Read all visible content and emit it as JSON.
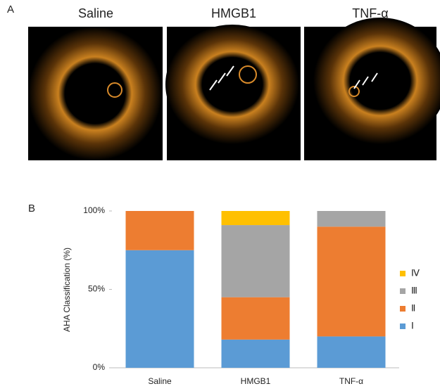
{
  "panels": {
    "a": "A",
    "b": "B"
  },
  "images": [
    "Saline",
    "HMGB1",
    "TNF-α"
  ],
  "chart_data": {
    "type": "bar",
    "stacked": true,
    "ylabel": "AHA Classification (%)",
    "categories": [
      "Saline",
      "HMGB1",
      "TNF-α"
    ],
    "series": [
      {
        "name": "Ⅰ",
        "color": "#5b9bd5",
        "values": [
          75,
          18,
          20
        ]
      },
      {
        "name": "Ⅱ",
        "color": "#ed7d31",
        "values": [
          25,
          27,
          70
        ]
      },
      {
        "name": "Ⅲ",
        "color": "#a5a5a5",
        "values": [
          0,
          46,
          10
        ]
      },
      {
        "name": "Ⅳ",
        "color": "#ffc000",
        "values": [
          0,
          9,
          0
        ]
      }
    ],
    "ylim": [
      0,
      100
    ],
    "yticks": [
      {
        "value": 0,
        "label": "0%"
      },
      {
        "value": 50,
        "label": "50%"
      },
      {
        "value": 100,
        "label": "100%"
      }
    ],
    "legend": "right"
  }
}
